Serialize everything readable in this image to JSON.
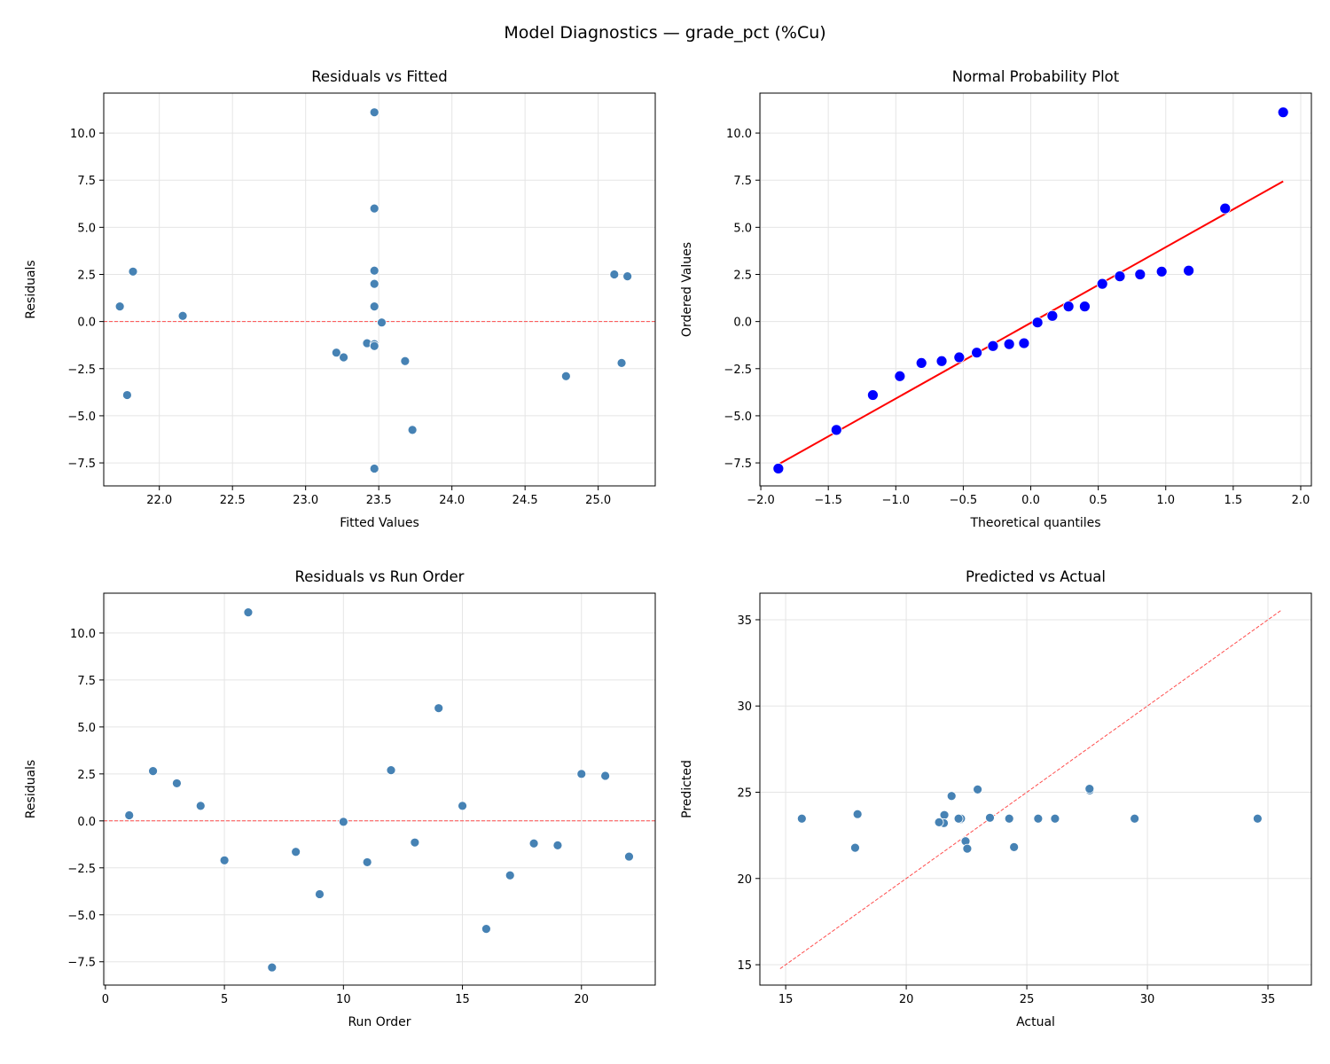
{
  "suptitle": "Model Diagnostics — grade_pct (%Cu)",
  "colors": {
    "points": "#4682b4",
    "qq_points": "#0000ff",
    "fit_line": "#ff0000",
    "reference": "#ff4d4d",
    "grid": "#e5e5e5"
  },
  "chart_data": [
    {
      "type": "scatter",
      "title": "Residuals vs Fitted",
      "xlabel": "Fitted Values",
      "ylabel": "Residuals",
      "xlim": [
        21.62,
        25.39
      ],
      "ylim": [
        -8.72,
        12.12
      ],
      "xticks": [
        "22.0",
        "22.5",
        "23.0",
        "23.5",
        "24.0",
        "24.5",
        "25.0"
      ],
      "yticks": [
        "−7.5",
        "−5.0",
        "−2.5",
        "0.0",
        "2.5",
        "5.0",
        "7.5",
        "10.0"
      ],
      "grid": true,
      "reference_line": {
        "type": "horizontal",
        "y": 0
      },
      "x": [
        22.16,
        21.82,
        23.47,
        21.73,
        23.68,
        23.47,
        23.47,
        23.21,
        21.78,
        23.52,
        25.16,
        23.47,
        23.42,
        23.47,
        23.47,
        23.73,
        24.78,
        23.47,
        23.47,
        25.11,
        25.2,
        23.26
      ],
      "y": [
        0.3,
        2.65,
        2.0,
        0.8,
        -2.1,
        11.1,
        -7.8,
        -1.65,
        -3.9,
        -0.05,
        -2.2,
        2.7,
        -1.15,
        6.0,
        0.8,
        -5.75,
        -2.9,
        -1.2,
        -1.3,
        2.5,
        2.4,
        -1.9
      ]
    },
    {
      "type": "scatter",
      "title": "Normal Probability Plot",
      "xlabel": "Theoretical quantiles",
      "ylabel": "Ordered Values",
      "xlim": [
        -2.007,
        2.079
      ],
      "ylim": [
        -8.72,
        12.12
      ],
      "xticks": [
        "−2.0",
        "−1.5",
        "−1.0",
        "−0.5",
        "0.0",
        "0.5",
        "1.0",
        "1.5",
        "2.0"
      ],
      "yticks": [
        "−7.5",
        "−5.0",
        "−2.5",
        "0.0",
        "2.5",
        "5.0",
        "7.5",
        "10.0"
      ],
      "grid": true,
      "x": [
        -1.87,
        -1.44,
        -1.17,
        -0.97,
        -0.81,
        -0.66,
        -0.53,
        -0.4,
        -0.28,
        -0.16,
        -0.05,
        0.05,
        0.16,
        0.28,
        0.4,
        0.53,
        0.66,
        0.81,
        0.97,
        1.17,
        1.44,
        1.87
      ],
      "y": [
        -7.8,
        -5.75,
        -3.9,
        -2.9,
        -2.2,
        -2.1,
        -1.9,
        -1.65,
        -1.3,
        -1.2,
        -1.15,
        -0.05,
        0.3,
        0.8,
        0.8,
        2.0,
        2.4,
        2.5,
        2.65,
        2.7,
        6.0,
        11.1
      ],
      "fit_line": {
        "x": [
          -1.87,
          1.87
        ],
        "y": [
          -7.58,
          7.44
        ]
      }
    },
    {
      "type": "scatter",
      "title": "Residuals vs Run Order",
      "xlabel": "Run Order",
      "ylabel": "Residuals",
      "xlim": [
        -0.07,
        23.1
      ],
      "ylim": [
        -8.74,
        12.12
      ],
      "xticks": [
        "0",
        "5",
        "10",
        "15",
        "20"
      ],
      "yticks": [
        "−7.5",
        "−5.0",
        "−2.5",
        "0.0",
        "2.5",
        "5.0",
        "7.5",
        "10.0"
      ],
      "grid": true,
      "reference_line": {
        "type": "horizontal",
        "y": 0
      },
      "x": [
        1,
        2,
        3,
        4,
        5,
        6,
        7,
        8,
        9,
        10,
        11,
        12,
        13,
        14,
        15,
        16,
        17,
        18,
        19,
        20,
        21,
        22
      ],
      "y": [
        0.3,
        2.65,
        2.0,
        0.8,
        -2.1,
        11.1,
        -7.8,
        -1.65,
        -3.9,
        -0.05,
        -2.2,
        2.7,
        -1.15,
        6.0,
        0.8,
        -5.75,
        -2.9,
        -1.2,
        -1.3,
        2.5,
        2.4,
        -1.9
      ]
    },
    {
      "type": "scatter",
      "title": "Predicted vs Actual",
      "xlabel": "Actual",
      "ylabel": "Predicted",
      "xlim": [
        13.93,
        36.8
      ],
      "ylim": [
        13.82,
        36.54
      ],
      "xticks": [
        "15",
        "20",
        "25",
        "30",
        "35"
      ],
      "yticks": [
        "15",
        "20",
        "25",
        "30",
        "35"
      ],
      "grid": true,
      "reference_line": {
        "type": "diagonal",
        "from": 14.77,
        "to": 35.57
      },
      "x": [
        22.46,
        24.47,
        25.47,
        22.53,
        21.58,
        34.57,
        15.67,
        21.56,
        17.88,
        23.47,
        22.96,
        26.17,
        22.27,
        29.47,
        24.27,
        17.98,
        21.88,
        22.27,
        22.17,
        27.61,
        27.6,
        21.36
      ],
      "y": [
        22.16,
        21.82,
        23.47,
        21.73,
        23.68,
        23.47,
        23.47,
        23.21,
        21.78,
        23.52,
        25.16,
        23.47,
        23.42,
        23.47,
        23.47,
        23.73,
        24.78,
        23.47,
        23.47,
        25.11,
        25.2,
        23.26
      ]
    }
  ]
}
